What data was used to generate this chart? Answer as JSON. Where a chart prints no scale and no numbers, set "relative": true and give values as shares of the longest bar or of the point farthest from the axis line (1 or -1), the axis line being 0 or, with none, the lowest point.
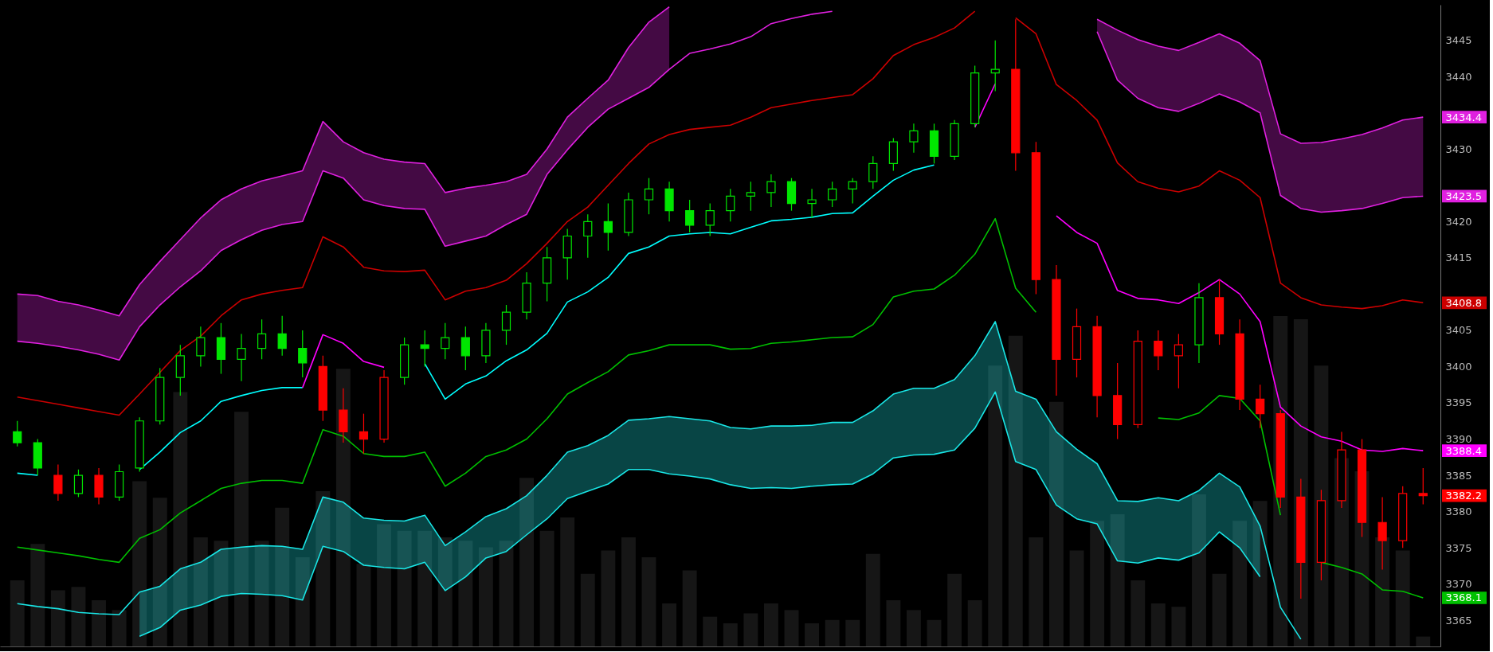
{
  "chart_data": [
    {
      "type": "candlestick",
      "categories": [
        null,
        null,
        null,
        null,
        null,
        null,
        null,
        null,
        null,
        null,
        null,
        null,
        null,
        null,
        null,
        null,
        null,
        null,
        null,
        null,
        null,
        null,
        null,
        null,
        null,
        null,
        null,
        null,
        null,
        null,
        null,
        null,
        null,
        null,
        null,
        null,
        null,
        null,
        null,
        null,
        null,
        null,
        null,
        null,
        null,
        null,
        null,
        null,
        null,
        null,
        null,
        null,
        null,
        null,
        null,
        null,
        null,
        null,
        null,
        null,
        null,
        null,
        null,
        null,
        null,
        null,
        null,
        null,
        null,
        null
      ],
      "ohlc": [
        [
          3391.0,
          3392.5,
          3389.0,
          3389.5
        ],
        [
          3389.5,
          3390.0,
          3385.0,
          3386.0
        ],
        [
          3385.0,
          3386.5,
          3381.5,
          3382.5
        ],
        [
          3382.5,
          3385.8,
          3382.0,
          3385.0
        ],
        [
          3385.0,
          3386.0,
          3381.0,
          3382.0
        ],
        [
          3382.0,
          3386.5,
          3381.5,
          3385.5
        ],
        [
          3386.0,
          3393.0,
          3385.5,
          3392.5
        ],
        [
          3392.5,
          3399.8,
          3392.0,
          3398.5
        ],
        [
          3398.5,
          3403.0,
          3396.0,
          3401.5
        ],
        [
          3401.5,
          3405.5,
          3400.0,
          3404.0
        ],
        [
          3404.0,
          3406.0,
          3399.0,
          3401.0
        ],
        [
          3401.0,
          3404.5,
          3398.0,
          3402.5
        ],
        [
          3402.5,
          3406.5,
          3401.0,
          3404.5
        ],
        [
          3404.5,
          3407.0,
          3401.5,
          3402.5
        ],
        [
          3402.5,
          3405.0,
          3398.5,
          3400.5
        ],
        [
          3400.0,
          3401.5,
          3392.5,
          3394.0
        ],
        [
          3394.0,
          3397.0,
          3389.5,
          3391.0
        ],
        [
          3391.0,
          3393.5,
          3388.0,
          3390.0
        ],
        [
          3390.0,
          3399.5,
          3389.5,
          3398.5
        ],
        [
          3398.5,
          3404.0,
          3397.5,
          3403.0
        ],
        [
          3403.0,
          3405.0,
          3400.0,
          3402.5
        ],
        [
          3402.5,
          3406.0,
          3401.0,
          3404.0
        ],
        [
          3404.0,
          3405.5,
          3399.5,
          3401.5
        ],
        [
          3401.5,
          3406.0,
          3400.5,
          3405.0
        ],
        [
          3405.0,
          3408.5,
          3403.0,
          3407.5
        ],
        [
          3407.5,
          3413.0,
          3406.5,
          3411.5
        ],
        [
          3411.5,
          3416.5,
          3409.0,
          3415.0
        ],
        [
          3415.0,
          3419.0,
          3412.0,
          3418.0
        ],
        [
          3418.0,
          3421.0,
          3415.0,
          3420.0
        ],
        [
          3420.0,
          3422.5,
          3416.0,
          3418.5
        ],
        [
          3418.5,
          3424.0,
          3418.0,
          3423.0
        ],
        [
          3423.0,
          3426.0,
          3421.0,
          3424.5
        ],
        [
          3424.5,
          3425.5,
          3420.0,
          3421.5
        ],
        [
          3421.5,
          3423.0,
          3418.5,
          3419.5
        ],
        [
          3419.5,
          3422.5,
          3418.0,
          3421.5
        ],
        [
          3421.5,
          3424.5,
          3420.0,
          3423.5
        ],
        [
          3423.5,
          3425.5,
          3421.5,
          3424.0
        ],
        [
          3424.0,
          3426.5,
          3422.0,
          3425.5
        ],
        [
          3425.5,
          3426.0,
          3421.5,
          3422.5
        ],
        [
          3422.5,
          3424.5,
          3420.5,
          3423.0
        ],
        [
          3423.0,
          3425.5,
          3422.0,
          3424.5
        ],
        [
          3424.5,
          3426.0,
          3422.5,
          3425.5
        ],
        [
          3425.5,
          3429.0,
          3424.5,
          3428.0
        ],
        [
          3428.0,
          3431.5,
          3427.0,
          3431.0
        ],
        [
          3431.0,
          3433.5,
          3429.5,
          3432.5
        ],
        [
          3432.5,
          3433.5,
          3428.0,
          3429.0
        ],
        [
          3429.0,
          3434.0,
          3428.5,
          3433.5
        ],
        [
          3433.5,
          3441.5,
          3433.0,
          3440.5
        ],
        [
          3440.5,
          3445.0,
          3438.0,
          3441.0
        ],
        [
          3441.0,
          3447.9,
          3427.0,
          3429.5
        ],
        [
          3429.5,
          3431.0,
          3410.0,
          3412.0
        ],
        [
          3412.0,
          3414.0,
          3396.0,
          3401.0
        ],
        [
          3401.0,
          3408.0,
          3398.5,
          3405.5
        ],
        [
          3405.5,
          3407.0,
          3393.0,
          3396.0
        ],
        [
          3396.0,
          3400.5,
          3390.0,
          3392.0
        ],
        [
          3392.0,
          3405.0,
          3391.5,
          3403.5
        ],
        [
          3403.5,
          3405.0,
          3399.5,
          3401.5
        ],
        [
          3401.5,
          3404.5,
          3397.0,
          3403.0
        ],
        [
          3403.0,
          3411.5,
          3400.5,
          3409.5
        ],
        [
          3409.5,
          3412.0,
          3403.0,
          3404.5
        ],
        [
          3404.5,
          3406.5,
          3394.0,
          3395.5
        ],
        [
          3395.5,
          3397.5,
          3391.5,
          3393.5
        ],
        [
          3393.5,
          3394.0,
          3380.5,
          3382.0
        ],
        [
          3382.0,
          3384.5,
          3368.0,
          3373.0
        ],
        [
          3373.0,
          3383.0,
          3370.5,
          3381.5
        ],
        [
          3381.5,
          3391.0,
          3380.5,
          3388.5
        ],
        [
          3388.5,
          3390.0,
          3376.5,
          3378.5
        ],
        [
          3378.5,
          3382.0,
          3372.0,
          3376.0
        ],
        [
          3376.0,
          3383.5,
          3375.0,
          3382.5
        ],
        [
          3382.5,
          3386.0,
          3381.0,
          3382.2
        ]
      ],
      "colors": [
        "#00e600",
        "#00e600",
        "#ff0000",
        "#00e600",
        "#ff0000",
        "#00e600",
        "#00e600",
        "#00e600",
        "#00e600",
        "#00e600",
        "#00e600",
        "#00e600",
        "#00e600",
        "#00e600",
        "#00e600",
        "#ff0000",
        "#ff0000",
        "#ff0000",
        "#ff0000",
        "#00e600",
        "#00e600",
        "#00e600",
        "#00e600",
        "#00e600",
        "#00e600",
        "#00e600",
        "#00e600",
        "#00e600",
        "#00e600",
        "#00e600",
        "#00e600",
        "#00e600",
        "#00e600",
        "#00e600",
        "#00e600",
        "#00e600",
        "#00e600",
        "#00e600",
        "#00e600",
        "#00e600",
        "#00e600",
        "#00e600",
        "#00e600",
        "#00e600",
        "#00e600",
        "#00e600",
        "#00e600",
        "#00e600",
        "#00e600",
        "#ff0000",
        "#ff0000",
        "#ff0000",
        "#ff0000",
        "#ff0000",
        "#ff0000",
        "#ff0000",
        "#ff0000",
        "#ff0000",
        "#00e600",
        "#ff0000",
        "#ff0000",
        "#ff0000",
        "#ff0000",
        "#ff0000",
        "#ff0000",
        "#ff0000",
        "#ff0000",
        "#ff0000",
        "#ff0000",
        "#ff0000"
      ],
      "series": [
        {
          "type": "line",
          "color": "#e020e0",
          "values": [
            3410.0,
            3409.8,
            3409.0,
            3408.5,
            3407.8,
            3407.0,
            3411.3,
            3414.5,
            3417.5,
            3420.5,
            3423.0,
            3424.5,
            3425.6,
            3426.3,
            3427.0,
            3433.8,
            3431.0,
            3429.5,
            3428.6,
            3428.2,
            3428.0,
            3424.0,
            3424.6,
            3425.0,
            3425.5,
            3426.5,
            3430.0,
            3434.4,
            3437.0,
            3439.5,
            3444.0,
            3447.5,
            3449.6,
            null,
            null,
            null,
            null,
            null,
            null,
            null,
            null,
            null,
            null,
            null,
            null,
            null,
            null,
            null,
            null,
            null,
            null,
            null,
            null,
            3447.9,
            3446.4,
            3445.1,
            3444.2,
            3443.6,
            3444.7,
            3445.9,
            3444.6,
            3442.2,
            3432.1,
            3430.8,
            3430.9,
            3431.4,
            3432.0,
            3432.9,
            3434.0,
            3434.4
          ],
          "upper": [
            3410.0,
            3409.8,
            3409.0,
            3408.5,
            3407.8,
            3407.0,
            3411.3,
            3414.5,
            3417.5,
            3420.5,
            3423.0,
            3424.5,
            3425.6,
            3426.3,
            3427.0,
            3433.8,
            3431.0,
            3429.5,
            3428.6,
            3428.2,
            3428.0,
            3424.0,
            3424.6,
            3425.0,
            3425.5,
            3426.5,
            3430.0,
            3434.4,
            3437.0,
            3439.5,
            3444.0,
            3447.5,
            3449.6,
            null,
            null,
            null,
            null,
            null,
            null,
            null,
            null,
            null,
            null,
            null,
            null,
            null,
            null,
            null,
            null,
            null,
            null,
            null,
            null,
            3447.9,
            3446.4,
            3445.1,
            3444.2,
            3443.6,
            3444.7,
            3445.9,
            3444.6,
            3442.2,
            3432.1,
            3430.8,
            3430.9,
            3431.4,
            3432.0,
            3432.9,
            3434.0,
            3434.4
          ],
          "lower": [
            3403.5,
            3403.2,
            3402.8,
            3402.3,
            3401.7,
            3400.9,
            3405.5,
            3408.5,
            3411.0,
            3413.2,
            3416.0,
            3417.5,
            3418.8,
            3419.6,
            3420.0,
            3427.0,
            3426.0,
            3423.0,
            3422.2,
            3421.8,
            3421.7,
            3416.6,
            3417.3,
            3418.0,
            3419.6,
            3421.0,
            3426.5,
            3429.9,
            3433.0,
            3435.5,
            3437.0,
            3438.5,
            3441.0,
            null,
            null,
            null,
            null,
            null,
            null,
            null,
            null,
            null,
            null,
            null,
            null,
            null,
            null,
            null,
            null,
            null,
            null,
            null,
            null,
            3446.2,
            3439.5,
            3437.0,
            3435.7,
            3435.2,
            3436.3,
            3437.6,
            3436.5,
            3435.0,
            3423.6,
            3421.8,
            3421.3,
            3421.5,
            3421.8,
            3422.5,
            3423.3,
            3423.5
          ]
        },
        {
          "type": "line",
          "color": "#e020e0",
          "values": [
            3403.5,
            3403.2,
            3402.8,
            3402.3,
            3401.7,
            3400.9,
            3405.5,
            3408.5,
            3411.0,
            3413.2,
            3416.0,
            3417.5,
            3418.8,
            3419.6,
            3420.0,
            3427.0,
            3426.0,
            3423.0,
            3422.2,
            3421.8,
            3421.7,
            3416.6,
            3417.3,
            3418.0,
            3419.6,
            3421.0,
            3426.5,
            3429.9,
            3433.0,
            3435.5,
            3437.0,
            3438.5,
            3441.0,
            3443.2,
            3443.8,
            3444.5,
            3445.5,
            3447.3,
            3448.0,
            3448.6,
            3449.0,
            null,
            null,
            null,
            null,
            null,
            null,
            null,
            null,
            null,
            null,
            null,
            null,
            3446.2,
            3439.5,
            3437.0,
            3435.7,
            3435.2,
            3436.3,
            3437.6,
            3436.5,
            3435.0,
            3423.6,
            3421.8,
            3421.3,
            3421.5,
            3421.8,
            3422.5,
            3423.3,
            3423.5
          ]
        },
        {
          "type": "line",
          "color": "#19e6e6",
          "values": [
            3367.3,
            3366.9,
            3366.6,
            3366.1,
            3365.9,
            3365.8,
            3368.9,
            3369.7,
            3372.1,
            3373.0,
            3374.8,
            3375.1,
            3375.3,
            3375.2,
            3374.8,
            3382.0,
            3381.3,
            3379.1,
            3378.8,
            3378.7,
            3379.5,
            3375.3,
            3377.2,
            3379.3,
            3380.4,
            3382.2,
            3385.0,
            3388.2,
            3389.1,
            3390.5,
            3392.6,
            3392.8,
            3393.1,
            3392.8,
            3392.5,
            3391.6,
            3391.4,
            3391.8,
            3391.8,
            3391.9,
            3392.3,
            3392.3,
            3393.9,
            3396.2,
            3397.0,
            3397.0,
            3398.2,
            3401.5,
            3406.2,
            3396.6,
            3395.5,
            3391.0,
            3388.6,
            3386.6,
            3381.5,
            3381.4,
            3381.9,
            3381.5,
            3382.9,
            3385.3,
            3383.4,
            3378.0,
            3366.8,
            3362.4,
            null,
            null,
            null,
            null,
            null,
            null
          ],
          "upper": [
            null,
            null,
            null,
            null,
            null,
            null,
            3368.9,
            3369.7,
            3372.1,
            3373.0,
            3374.8,
            3375.1,
            3375.3,
            3375.2,
            3374.8,
            3382.0,
            3381.3,
            3379.1,
            3378.8,
            3378.7,
            3379.5,
            3375.3,
            3377.2,
            3379.3,
            3380.4,
            3382.2,
            3385.0,
            3388.2,
            3389.1,
            3390.5,
            3392.6,
            3392.8,
            3393.1,
            3392.8,
            3392.5,
            3391.6,
            3391.4,
            3391.8,
            3391.8,
            3391.9,
            3392.3,
            3392.3,
            3393.9,
            3396.2,
            3397.0,
            3397.0,
            3398.2,
            3401.5,
            3406.2,
            3396.6,
            3395.5,
            3391.0,
            3388.6,
            3386.6,
            3381.5,
            3381.4,
            3381.9,
            3381.5,
            3382.9,
            3385.3,
            3383.4,
            3378.0,
            null,
            null,
            null,
            null,
            null,
            null,
            null,
            null
          ],
          "lower": [
            null,
            null,
            null,
            null,
            null,
            null,
            3362.8,
            3364.0,
            3366.4,
            3367.1,
            3368.3,
            3368.7,
            3368.6,
            3368.4,
            3367.8,
            3375.2,
            3374.5,
            3372.6,
            3372.3,
            3372.1,
            3373.0,
            3369.1,
            3371.0,
            3373.6,
            3374.5,
            3376.8,
            3379.0,
            3381.8,
            3382.8,
            3383.8,
            3385.8,
            3385.8,
            3385.2,
            3384.9,
            3384.5,
            3383.7,
            3383.2,
            3383.3,
            3383.2,
            3383.5,
            3383.7,
            3383.8,
            3385.2,
            3387.4,
            3387.8,
            3387.9,
            3388.5,
            3391.5,
            3396.5,
            3386.9,
            3385.8,
            3380.9,
            3379.0,
            3378.3,
            3373.2,
            3372.9,
            3373.6,
            3373.3,
            3374.3,
            3377.2,
            3375.0,
            3371.0,
            null,
            null,
            null,
            null,
            null,
            null,
            null,
            null
          ]
        },
        {
          "type": "line",
          "color": "#19e6e6",
          "values": [
            null,
            null,
            null,
            null,
            null,
            null,
            3362.8,
            3364.0,
            3366.4,
            3367.1,
            3368.3,
            3368.7,
            3368.6,
            3368.4,
            3367.8,
            3375.2,
            3374.5,
            3372.6,
            3372.3,
            3372.1,
            3373.0,
            3369.1,
            3371.0,
            3373.6,
            3374.5,
            3376.8,
            3379.0,
            3381.8,
            3382.8,
            3383.8,
            3385.8,
            3385.8,
            3385.2,
            3384.9,
            3384.5,
            3383.7,
            3383.2,
            3383.3,
            3383.2,
            3383.5,
            3383.7,
            3383.8,
            3385.2,
            3387.4,
            3387.8,
            3387.9,
            3388.5,
            3391.5,
            3396.5,
            3386.9,
            3385.8,
            3380.9,
            3379.0,
            3378.3,
            3373.2,
            3372.9,
            3373.6,
            3373.3,
            3374.3,
            3377.2,
            3375.0,
            3371.0,
            null,
            null,
            null,
            null,
            null,
            null,
            null,
            null
          ]
        },
        {
          "type": "line",
          "color": "#cc0000",
          "values": [
            3395.8,
            3395.3,
            3394.8,
            3394.3,
            3393.8,
            3393.3,
            3396.2,
            3399.2,
            3402.2,
            3404.2,
            3407.0,
            3409.2,
            3410.0,
            3410.5,
            3410.9,
            3417.9,
            3416.5,
            3413.7,
            3413.2,
            3413.1,
            3413.3,
            3409.2,
            3410.4,
            3410.9,
            3411.9,
            3414.2,
            3417.0,
            3420.0,
            3422.0,
            3425.0,
            3428.0,
            3430.7,
            3432.0,
            3432.7,
            3433.0,
            3433.3,
            3434.4,
            3435.7,
            3436.2,
            3436.7,
            3437.1,
            3437.5,
            3439.7,
            3442.9,
            3444.4,
            3445.4,
            3446.7,
            3449.0,
            null,
            3448.1,
            3445.9,
            3438.9,
            3436.7,
            3434.0,
            3428.1,
            3425.5,
            3424.6,
            3424.1,
            3424.9,
            3427.0,
            3425.7,
            3423.3,
            3411.5,
            3409.5,
            3408.5,
            3408.2,
            3408.0,
            3408.4,
            3409.2,
            3408.8
          ]
        },
        {
          "type": "line",
          "color": "#00c000",
          "values": [
            3375.1,
            3374.7,
            3374.3,
            3373.9,
            3373.4,
            3373.0,
            3376.3,
            3377.5,
            3379.8,
            3381.5,
            3383.2,
            3383.9,
            3384.3,
            3384.3,
            3383.9,
            3391.3,
            3390.4,
            3388.0,
            3387.6,
            3387.6,
            3388.2,
            3383.5,
            3385.3,
            3387.6,
            3388.5,
            3390.0,
            3392.8,
            3396.2,
            3397.8,
            3399.3,
            3401.6,
            3402.2,
            3403.0,
            3403.0,
            3403.0,
            3402.4,
            3402.5,
            3403.2,
            3403.4,
            3403.7,
            3404.0,
            3404.1,
            3405.8,
            3409.6,
            3410.4,
            3410.7,
            3412.6,
            3415.5,
            3420.4,
            3410.8,
            3407.5,
            null,
            null,
            null,
            null,
            null,
            3392.9,
            3392.7,
            3393.6,
            3396.0,
            3395.6,
            3392.5,
            3379.5,
            null,
            3373.0,
            3372.3,
            3371.4,
            3369.2,
            3369.0,
            3368.1
          ]
        },
        {
          "type": "line",
          "color": "#00ffff",
          "values": [
            3385.3,
            3385.0,
            null,
            null,
            null,
            null,
            3385.8,
            3388.2,
            3390.9,
            3392.5,
            3395.2,
            3396.0,
            3396.7,
            3397.1,
            3397.1,
            null,
            null,
            null,
            null,
            null,
            3400.4,
            3395.5,
            3397.6,
            3398.7,
            3400.8,
            3402.3,
            3404.6,
            3408.9,
            3410.3,
            3412.3,
            3415.6,
            3416.5,
            3418.0,
            3418.3,
            3418.5,
            3418.3,
            3419.2,
            3420.1,
            3420.3,
            3420.6,
            3421.1,
            3421.2,
            3423.5,
            3425.7,
            3427.1,
            3427.8,
            null,
            null,
            null,
            null,
            null,
            null,
            null,
            null,
            null,
            null,
            null,
            null,
            null,
            null,
            null,
            null,
            null,
            null,
            null,
            null,
            null,
            null,
            null,
            null
          ]
        },
        {
          "type": "line",
          "color": "#ff00ff",
          "values": [
            null,
            null,
            null,
            null,
            null,
            null,
            null,
            null,
            null,
            null,
            null,
            null,
            null,
            null,
            3397.1,
            3404.4,
            3403.2,
            3400.7,
            3399.9,
            null,
            null,
            null,
            null,
            null,
            null,
            null,
            null,
            null,
            null,
            null,
            null,
            null,
            null,
            null,
            null,
            null,
            null,
            null,
            null,
            null,
            null,
            null,
            null,
            null,
            null,
            null,
            null,
            3433.0,
            3439.0,
            null,
            null,
            3420.8,
            3418.5,
            3417.0,
            3410.5,
            3409.4,
            3409.2,
            3408.7,
            3410.2,
            3412.0,
            3410.0,
            3406.2,
            3394.4,
            3391.8,
            3390.3,
            3389.7,
            3388.5,
            3388.3,
            3388.7,
            3388.4
          ]
        }
      ],
      "ylim": [
        3361.4,
        3449.9
      ],
      "yticks": [
        3365,
        3368.1,
        3370,
        3375,
        3380,
        3382.2,
        3385,
        3388.4,
        3390,
        3395,
        3400,
        3405,
        3408.8,
        3415,
        3420,
        3423.5,
        3430,
        3434.4,
        3440,
        3445
      ],
      "tick_labels": "y",
      "grid": false
    },
    {
      "type": "bar",
      "relative": true,
      "color": "#161616",
      "categories": [
        null,
        null,
        null,
        null,
        null,
        null,
        null,
        null,
        null,
        null,
        null,
        null,
        null,
        null,
        null,
        null,
        null,
        null,
        null,
        null,
        null,
        null,
        null,
        null,
        null,
        null,
        null,
        null,
        null,
        null,
        null,
        null,
        null,
        null,
        null,
        null,
        null,
        null,
        null,
        null,
        null,
        null,
        null,
        null,
        null,
        null,
        null,
        null,
        null,
        null,
        null,
        null,
        null,
        null,
        null,
        null,
        null,
        null,
        null,
        null,
        null,
        null,
        null,
        null,
        null,
        null,
        null,
        null,
        null,
        null
      ],
      "values": [
        0.2,
        0.31,
        0.17,
        0.18,
        0.14,
        0.11,
        0.5,
        0.45,
        0.77,
        0.33,
        0.32,
        0.71,
        0.32,
        0.42,
        0.27,
        0.47,
        0.84,
        0.25,
        0.37,
        0.35,
        0.35,
        0.33,
        0.32,
        0.3,
        0.32,
        0.51,
        0.35,
        0.39,
        0.22,
        0.29,
        0.33,
        0.27,
        0.13,
        0.23,
        0.09,
        0.07,
        0.1,
        0.13,
        0.11,
        0.07,
        0.08,
        0.08,
        0.28,
        0.14,
        0.11,
        0.08,
        0.22,
        0.14,
        0.85,
        0.94,
        0.33,
        0.74,
        0.29,
        0.38,
        0.4,
        0.2,
        0.13,
        0.12,
        0.46,
        0.22,
        0.38,
        0.44,
        1,
        0.99,
        0.85,
        0.57,
        0.53,
        0.33,
        0.29,
        0.03
      ]
    }
  ]
}
